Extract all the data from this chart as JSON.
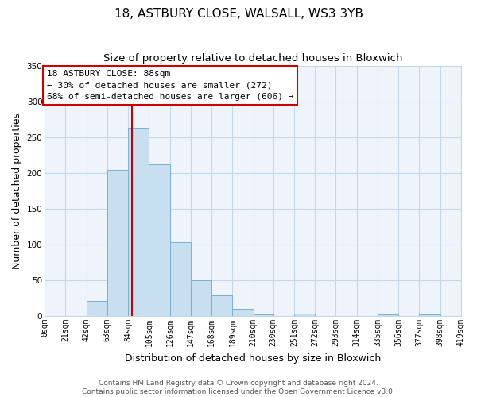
{
  "title": "18, ASTBURY CLOSE, WALSALL, WS3 3YB",
  "subtitle": "Size of property relative to detached houses in Bloxwich",
  "xlabel": "Distribution of detached houses by size in Bloxwich",
  "ylabel": "Number of detached properties",
  "bin_edges": [
    0,
    21,
    42,
    63,
    84,
    105,
    126,
    147,
    168,
    189,
    210,
    230,
    251,
    272,
    293,
    314,
    335,
    356,
    377,
    398,
    419
  ],
  "bin_counts": [
    0,
    0,
    21,
    204,
    263,
    212,
    103,
    50,
    29,
    10,
    2,
    0,
    4,
    0,
    0,
    0,
    2,
    0,
    2,
    0
  ],
  "bar_color": "#c8dff0",
  "bar_edge_color": "#7bafd4",
  "property_line_x": 88,
  "property_line_color": "#cc0000",
  "annotation_title": "18 ASTBURY CLOSE: 88sqm",
  "annotation_line1": "← 30% of detached houses are smaller (272)",
  "annotation_line2": "68% of semi-detached houses are larger (606) →",
  "annotation_box_color": "#ffffff",
  "annotation_border_color": "#cc0000",
  "ylim": [
    0,
    350
  ],
  "xlim": [
    0,
    419
  ],
  "tick_labels": [
    "0sqm",
    "21sqm",
    "42sqm",
    "63sqm",
    "84sqm",
    "105sqm",
    "126sqm",
    "147sqm",
    "168sqm",
    "189sqm",
    "210sqm",
    "230sqm",
    "251sqm",
    "272sqm",
    "293sqm",
    "314sqm",
    "335sqm",
    "356sqm",
    "377sqm",
    "398sqm",
    "419sqm"
  ],
  "tick_positions": [
    0,
    21,
    42,
    63,
    84,
    105,
    126,
    147,
    168,
    189,
    210,
    230,
    251,
    272,
    293,
    314,
    335,
    356,
    377,
    398,
    419
  ],
  "ytick_positions": [
    0,
    50,
    100,
    150,
    200,
    250,
    300,
    350
  ],
  "footer_line1": "Contains HM Land Registry data © Crown copyright and database right 2024.",
  "footer_line2": "Contains public sector information licensed under the Open Government Licence v3.0.",
  "background_color": "#ffffff",
  "plot_bg_color": "#eef4fa",
  "grid_color": "#c5d8ea",
  "title_fontsize": 11,
  "subtitle_fontsize": 9.5,
  "axis_label_fontsize": 9,
  "tick_fontsize": 7,
  "annotation_fontsize": 8,
  "footer_fontsize": 6.5
}
